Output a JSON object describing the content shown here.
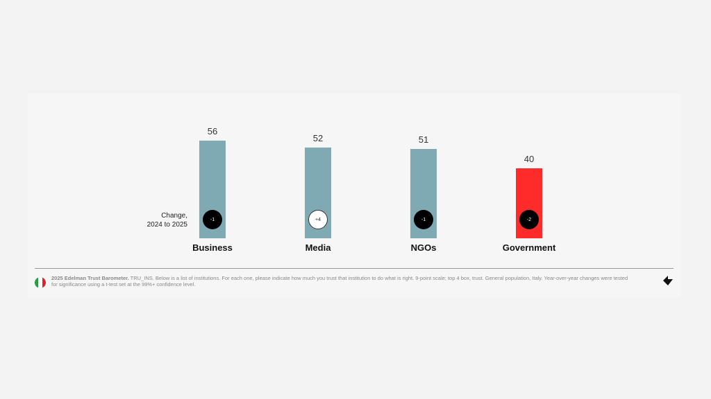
{
  "chart_data": {
    "type": "bar",
    "categories": [
      "Business",
      "Media",
      "NGOs",
      "Government"
    ],
    "values": [
      56,
      52,
      51,
      40
    ],
    "changes": [
      "-1",
      "+4",
      "-1",
      "-2"
    ],
    "change_label_line1": "Change,",
    "change_label_line2": "2024 to 2025",
    "ylim": [
      0,
      100
    ],
    "bar_colors": [
      "#7faab3",
      "#7faab3",
      "#7faab3",
      "#ff2a2a"
    ],
    "change_styles": [
      "dark",
      "light",
      "dark",
      "dark"
    ]
  },
  "footer": {
    "source_bold": "2025 Edelman Trust Barometer.",
    "source_text": " TRU_INS. Below is a list of institutions. For each one, please indicate how much you trust that institution to do what is right. 9-point scale; top 4 box, trust. General population, Italy. Year-over-year changes were tested for significance using a t-test set at the 99%+ confidence level.",
    "flag_icon": "italy-flag-icon",
    "logo_icon": "edelman-arrow-logo"
  }
}
